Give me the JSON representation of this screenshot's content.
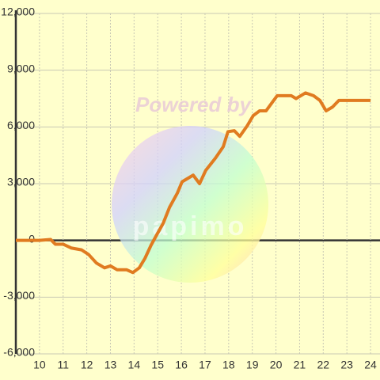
{
  "chart_data": {
    "type": "line",
    "watermark": [
      "Powered by",
      "papimo"
    ],
    "x": [
      9.0,
      10.0,
      10.47,
      10.67,
      11.0,
      11.34,
      11.78,
      12.08,
      12.41,
      12.75,
      13.0,
      13.28,
      13.68,
      13.95,
      14.22,
      14.46,
      14.72,
      14.96,
      15.23,
      15.5,
      15.83,
      16.03,
      16.5,
      16.77,
      17.03,
      17.44,
      17.77,
      17.97,
      18.24,
      18.47,
      18.78,
      19.04,
      19.31,
      19.58,
      20.05,
      20.65,
      20.85,
      21.25,
      21.59,
      21.86,
      22.12,
      22.39,
      22.66,
      23.06,
      24.0
    ],
    "series": [
      {
        "color": "#e07b20",
        "values": [
          0,
          0,
          50,
          -200,
          -200,
          -400,
          -500,
          -750,
          -1200,
          -1450,
          -1350,
          -1550,
          -1550,
          -1700,
          -1450,
          -950,
          -250,
          300,
          900,
          1750,
          2500,
          3100,
          3450,
          3000,
          3700,
          4350,
          4950,
          5750,
          5800,
          5500,
          6050,
          6600,
          6850,
          6850,
          7650,
          7650,
          7500,
          7800,
          7650,
          7400,
          6850,
          7050,
          7400,
          7400,
          7400
        ]
      }
    ],
    "xlim": [
      9,
      24.4
    ],
    "xticks": [
      10,
      11,
      12,
      13,
      14,
      15,
      16,
      17,
      18,
      19,
      20,
      21,
      22,
      23,
      24
    ],
    "ylim": [
      -6000,
      12000
    ],
    "yticks": [
      {
        "value": -6000,
        "label": "-6,000"
      },
      {
        "value": -3000,
        "label": "-3,000"
      },
      0,
      {
        "value": 3000,
        "label": "3,000"
      },
      {
        "value": 6000,
        "label": "6,000"
      },
      {
        "value": 9000,
        "label": "9,000"
      },
      {
        "value": 12000,
        "label": "12,000"
      }
    ],
    "grid": true
  }
}
